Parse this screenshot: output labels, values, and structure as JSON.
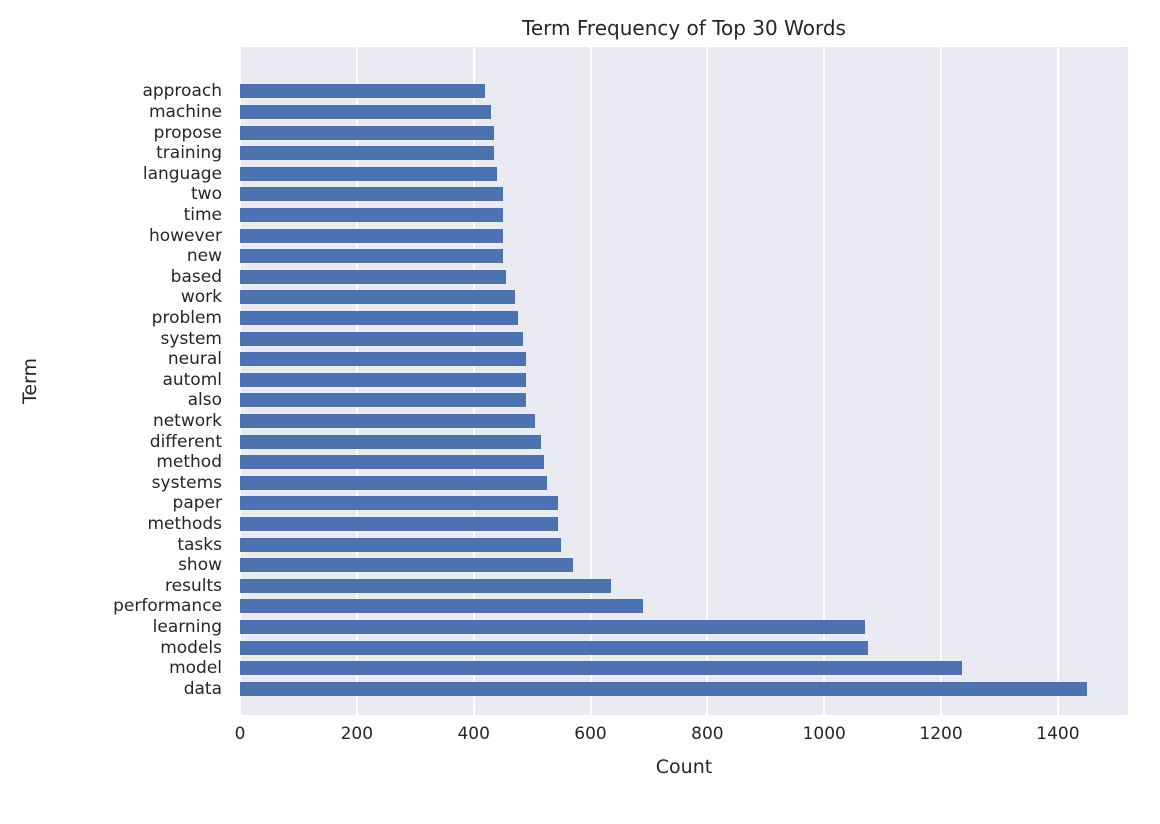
{
  "chart_data": {
    "type": "bar",
    "orientation": "horizontal",
    "title": "Term Frequency of Top 30 Words",
    "xlabel": "Count",
    "ylabel": "Term",
    "categories": [
      "approach",
      "machine",
      "propose",
      "training",
      "language",
      "two",
      "time",
      "however",
      "new",
      "based",
      "work",
      "problem",
      "system",
      "neural",
      "automl",
      "also",
      "network",
      "different",
      "method",
      "systems",
      "paper",
      "methods",
      "tasks",
      "show",
      "results",
      "performance",
      "learning",
      "models",
      "model",
      "data"
    ],
    "values": [
      420,
      430,
      435,
      435,
      440,
      450,
      450,
      450,
      450,
      455,
      470,
      475,
      485,
      490,
      490,
      490,
      505,
      515,
      520,
      525,
      545,
      545,
      550,
      570,
      635,
      690,
      1070,
      1075,
      1235,
      1450
    ],
    "xlim": [
      0,
      1520
    ],
    "xticks": [
      0,
      200,
      400,
      600,
      800,
      1000,
      1200,
      1400
    ],
    "grid": true,
    "legend": null,
    "bar_color": "#4c72b0",
    "plot_background": "#eaeaf2",
    "gridline_color": "#ffffff",
    "text_color": "#262626"
  }
}
